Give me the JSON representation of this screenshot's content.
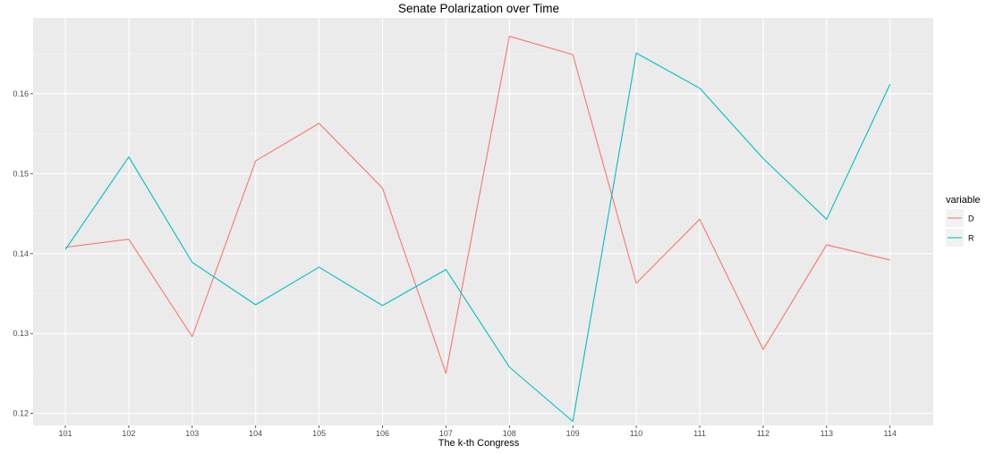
{
  "chart_data": {
    "type": "line",
    "title": "Senate Polarization over Time",
    "xlabel": "The k-th Congress",
    "ylabel": "",
    "categories": [
      "101",
      "102",
      "103",
      "104",
      "105",
      "106",
      "107",
      "108",
      "109",
      "110",
      "111",
      "112",
      "113",
      "114"
    ],
    "ylim": [
      0.1185,
      0.1695
    ],
    "yticks": [
      0.12,
      0.13,
      0.14,
      0.15,
      0.16
    ],
    "ytick_labels": [
      "0.12",
      "0.13",
      "0.14",
      "0.15",
      "0.16"
    ],
    "grid": true,
    "legend": {
      "title": "variable",
      "position": "right"
    },
    "series": [
      {
        "name": "D",
        "color": "#F8766D",
        "values": [
          0.1408,
          0.1418,
          0.1296,
          0.1516,
          0.1563,
          0.1482,
          0.125,
          0.1672,
          0.1649,
          0.1363,
          0.1443,
          0.128,
          0.1411,
          0.1392
        ]
      },
      {
        "name": "R",
        "color": "#00BFC4",
        "values": [
          0.1405,
          0.1521,
          0.1389,
          0.1336,
          0.1383,
          0.1335,
          0.138,
          0.1258,
          0.119,
          0.1651,
          0.1607,
          0.1519,
          0.1443,
          0.1612
        ]
      }
    ]
  }
}
